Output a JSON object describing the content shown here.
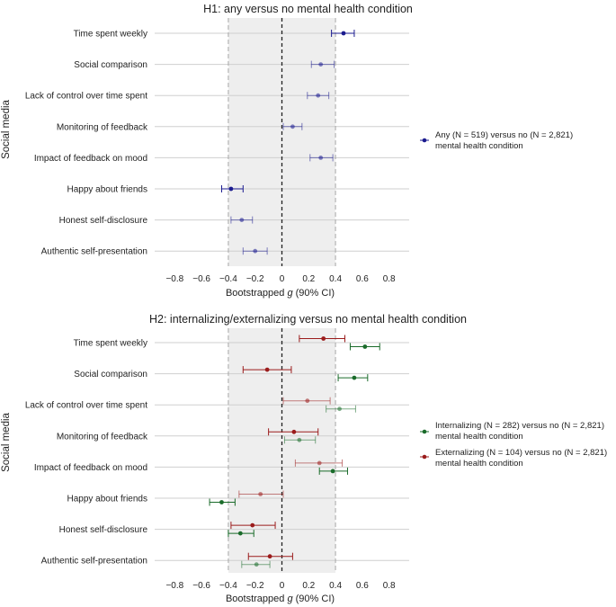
{
  "figure_label": "",
  "legend_panel1": {
    "any": {
      "line1": "Any (N = 519) versus no (N = 2,821)",
      "line2": "mental health condition",
      "color": "#1b1b8f"
    }
  },
  "legend_panel2": {
    "internalizing": {
      "line1": "Internalizing (N = 282) versus no (N = 2,821)",
      "line2": "mental health condition",
      "color": "#1a6b2a"
    },
    "externalizing": {
      "line1": "Externalizing (N = 104) versus no (N = 2,821)",
      "line2": "mental health condition",
      "color": "#9b1c1c"
    }
  },
  "colors": {
    "shaded_region": "#eeeeee",
    "row_line": "#cfcfcf",
    "zero_line": "#222222",
    "bound_line": "#a8a8a8"
  },
  "chart_data": [
    {
      "type": "scatter",
      "subtype": "forest-plot",
      "title": "H1: any versus no mental health condition",
      "xlabel": "Bootstrapped g (90% CI)",
      "ylabel": "Social media",
      "xlim": [
        -0.95,
        0.95
      ],
      "xticks": [
        "−0.8",
        "−0.6",
        "−0.4",
        "−0.2",
        "0",
        "0.2",
        "0.4",
        "0.6",
        "0.8"
      ],
      "xtick_values": [
        -0.8,
        -0.6,
        -0.4,
        -0.2,
        0,
        0.2,
        0.4,
        0.6,
        0.8
      ],
      "equivalence_bounds": [
        -0.4,
        0.4
      ],
      "reference_line": 0,
      "categories": [
        "Time spent weekly",
        "Social comparison",
        "Lack of control over time spent",
        "Monitoring of feedback",
        "Impact of feedback on mood",
        "Happy about friends",
        "Honest self-disclosure",
        "Authentic self-presentation"
      ],
      "series": [
        {
          "key": "any",
          "color": "#1b1b8f",
          "estimates": [
            0.46,
            0.29,
            0.27,
            0.08,
            0.29,
            -0.38,
            -0.3,
            -0.2
          ],
          "ci_low": [
            0.37,
            0.22,
            0.19,
            0.01,
            0.21,
            -0.45,
            -0.38,
            -0.29
          ],
          "ci_high": [
            0.54,
            0.39,
            0.35,
            0.15,
            0.38,
            -0.29,
            -0.22,
            -0.11
          ],
          "emphasis": [
            true,
            false,
            false,
            false,
            false,
            true,
            false,
            false
          ]
        }
      ]
    },
    {
      "type": "scatter",
      "subtype": "forest-plot",
      "title": "H2: internalizing/externalizing versus no mental health condition",
      "xlabel": "Bootstrapped g (90% CI)",
      "ylabel": "Social media",
      "xlim": [
        -0.95,
        0.95
      ],
      "xticks": [
        "−0.8",
        "−0.6",
        "−0.4",
        "−0.2",
        "0",
        "0.2",
        "0.4",
        "0.6",
        "0.8"
      ],
      "xtick_values": [
        -0.8,
        -0.6,
        -0.4,
        -0.2,
        0,
        0.2,
        0.4,
        0.6,
        0.8
      ],
      "equivalence_bounds": [
        -0.4,
        0.4
      ],
      "reference_line": 0,
      "categories": [
        "Time spent weekly",
        "Social comparison",
        "Lack of control over time spent",
        "Monitoring of feedback",
        "Impact of feedback on mood",
        "Happy about friends",
        "Honest self-disclosure",
        "Authentic self-presentation"
      ],
      "series": [
        {
          "key": "externalizing",
          "color": "#9b1c1c",
          "estimates": [
            0.31,
            -0.11,
            0.19,
            0.09,
            0.28,
            -0.16,
            -0.22,
            -0.09
          ],
          "ci_low": [
            0.13,
            -0.29,
            0.01,
            -0.1,
            0.1,
            -0.32,
            -0.38,
            -0.25
          ],
          "ci_high": [
            0.47,
            0.07,
            0.36,
            0.27,
            0.45,
            0.01,
            -0.05,
            0.08
          ],
          "emphasis": [
            true,
            true,
            false,
            true,
            false,
            false,
            true,
            true
          ]
        },
        {
          "key": "internalizing",
          "color": "#1a6b2a",
          "estimates": [
            0.62,
            0.54,
            0.43,
            0.13,
            0.38,
            -0.45,
            -0.31,
            -0.19
          ],
          "ci_low": [
            0.51,
            0.42,
            0.33,
            0.02,
            0.28,
            -0.54,
            -0.4,
            -0.3
          ],
          "ci_high": [
            0.73,
            0.64,
            0.55,
            0.25,
            0.49,
            -0.35,
            -0.21,
            -0.09
          ],
          "emphasis": [
            true,
            true,
            false,
            false,
            true,
            true,
            true,
            false
          ]
        }
      ]
    }
  ]
}
